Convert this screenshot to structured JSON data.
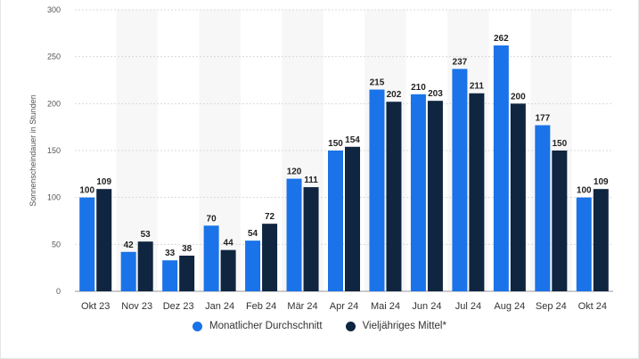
{
  "chart_data": {
    "type": "bar",
    "ylabel": "Sonnenscheindauer in Stunden",
    "ylim": [
      0,
      300
    ],
    "yticks": [
      0,
      50,
      100,
      150,
      200,
      250,
      300
    ],
    "categories": [
      "Okt 23",
      "Nov 23",
      "Dez 23",
      "Jan 24",
      "Feb 24",
      "Mär 24",
      "Apr 24",
      "Mai 24",
      "Jun 24",
      "Jul 24",
      "Aug 24",
      "Sep 24",
      "Okt 24"
    ],
    "series": [
      {
        "name": "Monatlicher Durchschnitt",
        "color": "#1a73e8",
        "values": [
          100,
          42,
          33,
          70,
          54,
          120,
          150,
          215,
          210,
          237,
          262,
          177,
          100
        ]
      },
      {
        "name": "Vieljähriges Mittel*",
        "color": "#0f2540",
        "values": [
          109,
          53,
          38,
          44,
          72,
          111,
          154,
          202,
          203,
          211,
          200,
          150,
          109
        ]
      }
    ],
    "legend_position": "bottom-center",
    "grid": true
  }
}
